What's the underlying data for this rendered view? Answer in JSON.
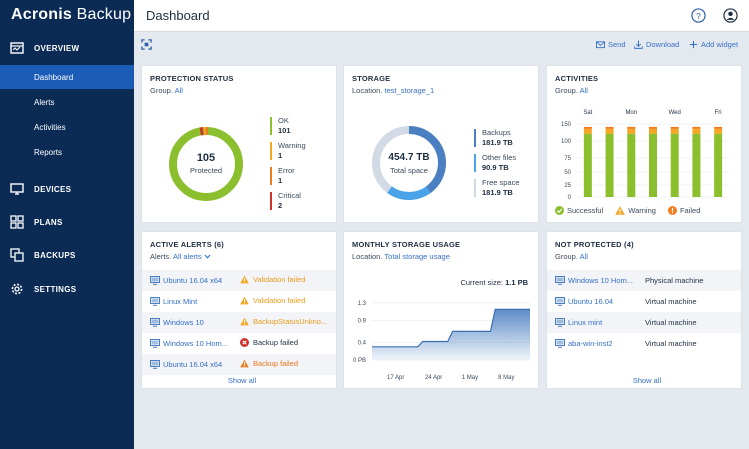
{
  "brand": {
    "name_bold": "Acronis",
    "name_light": " Backup"
  },
  "sidebar": {
    "sections": [
      {
        "label": "OVERVIEW",
        "icon": "overview-icon"
      },
      {
        "label": "DEVICES",
        "icon": "monitor-icon"
      },
      {
        "label": "PLANS",
        "icon": "plans-icon"
      },
      {
        "label": "BACKUPS",
        "icon": "backups-icon"
      },
      {
        "label": "SETTINGS",
        "icon": "gear-icon"
      }
    ],
    "overview_items": [
      {
        "label": "Dashboard",
        "active": true
      },
      {
        "label": "Alerts"
      },
      {
        "label": "Activities"
      },
      {
        "label": "Reports"
      }
    ]
  },
  "header": {
    "title": "Dashboard",
    "help_icon": "help-icon",
    "account_icon": "account-icon"
  },
  "toolbar": {
    "send": "Send",
    "download": "Download",
    "add_widget": "Add widget"
  },
  "protection_status": {
    "title": "PROTECTION STATUS",
    "group_label": "Group.",
    "group_value": "All",
    "center_value": "105",
    "center_label": "Protected",
    "legend": [
      {
        "label": "OK",
        "value": "101",
        "color": "#8cbf2d"
      },
      {
        "label": "Warning",
        "value": "1",
        "color": "#f5a623"
      },
      {
        "label": "Error",
        "value": "1",
        "color": "#f07c1f"
      },
      {
        "label": "Critical",
        "value": "2",
        "color": "#d0312d"
      }
    ]
  },
  "storage": {
    "title": "STORAGE",
    "location_label": "Location.",
    "location_value": "test_storage_1",
    "center_value": "454.7 TB",
    "center_label": "Total space",
    "legend": [
      {
        "label": "Backups",
        "value": "181.9 TB",
        "color": "#4a7fc1"
      },
      {
        "label": "Other files",
        "value": "90.9 TB",
        "color": "#4aa3e8"
      },
      {
        "label": "Free space",
        "value": "181.9 TB",
        "color": "#d2dae5"
      }
    ]
  },
  "activities": {
    "title": "ACTIVITIES",
    "group_label": "Group.",
    "group_value": "All",
    "chart_data": {
      "type": "bar",
      "categories": [
        "Sat",
        "",
        "Mon",
        "",
        "Wed",
        "",
        "Fri"
      ],
      "ylim": [
        0,
        150
      ],
      "yticks": [
        "150",
        "100",
        "75",
        "50",
        "25",
        "0"
      ],
      "series": [
        {
          "name": "Successful",
          "color": "#8cbf2d",
          "values": [
            130,
            130,
            130,
            130,
            130,
            130,
            130
          ]
        },
        {
          "name": "Warning",
          "color": "#f5a623",
          "values": [
            10,
            10,
            10,
            10,
            10,
            10,
            10
          ]
        },
        {
          "name": "Failed",
          "color": "#f07c1f",
          "values": [
            4,
            4,
            4,
            4,
            4,
            4,
            4
          ]
        }
      ]
    }
  },
  "active_alerts": {
    "title": "ACTIVE ALERTS (6)",
    "filter_label": "Alerts.",
    "filter_value": "All alerts",
    "rows": [
      {
        "device": "Ubuntu 16.04 x64",
        "status": "Validation failed",
        "kind": "warning"
      },
      {
        "device": "Linux Mint",
        "status": "Validation failed",
        "kind": "warning"
      },
      {
        "device": "Windows 10",
        "status": "BackupStatusUnkno...",
        "kind": "warning"
      },
      {
        "device": "Windows 10 Hom...",
        "status": "Backup failed",
        "kind": "error"
      },
      {
        "device": "Ubuntu 16.04 x64",
        "status": "Backup failed",
        "kind": "warning-orange"
      }
    ],
    "show_all": "Show all"
  },
  "monthly_storage": {
    "title": "MONTHLY STORAGE USAGE",
    "location_label": "Location.",
    "location_value": "Total storage usage",
    "current_size_label": "Current size:",
    "current_size_value": "1.1 PB",
    "chart_data": {
      "type": "area",
      "x": [
        "17 Apr",
        "24 Apr",
        "1 May",
        "8 May"
      ],
      "ylim": [
        0,
        1.5
      ],
      "yticks": [
        "1.3",
        "0.9",
        "0.4",
        "0 PB"
      ],
      "points": [
        [
          0,
          0.3
        ],
        [
          1.45,
          0.3
        ],
        [
          1.6,
          0.42
        ],
        [
          2.4,
          0.42
        ],
        [
          2.55,
          0.65
        ],
        [
          3.75,
          0.65
        ],
        [
          3.9,
          1.15
        ],
        [
          5,
          1.15
        ]
      ]
    }
  },
  "not_protected": {
    "title": "NOT PROTECTED (4)",
    "group_label": "Group.",
    "group_value": "All",
    "rows": [
      {
        "device": "Windows 10 Hom...",
        "type": "Physical machine"
      },
      {
        "device": "Ubuntu 16.04",
        "type": "Virtual machine"
      },
      {
        "device": "Linux mint",
        "type": "Virtual machine"
      },
      {
        "device": "aba-win-inst2",
        "type": "Virtual machine"
      }
    ],
    "show_all": "Show all"
  }
}
